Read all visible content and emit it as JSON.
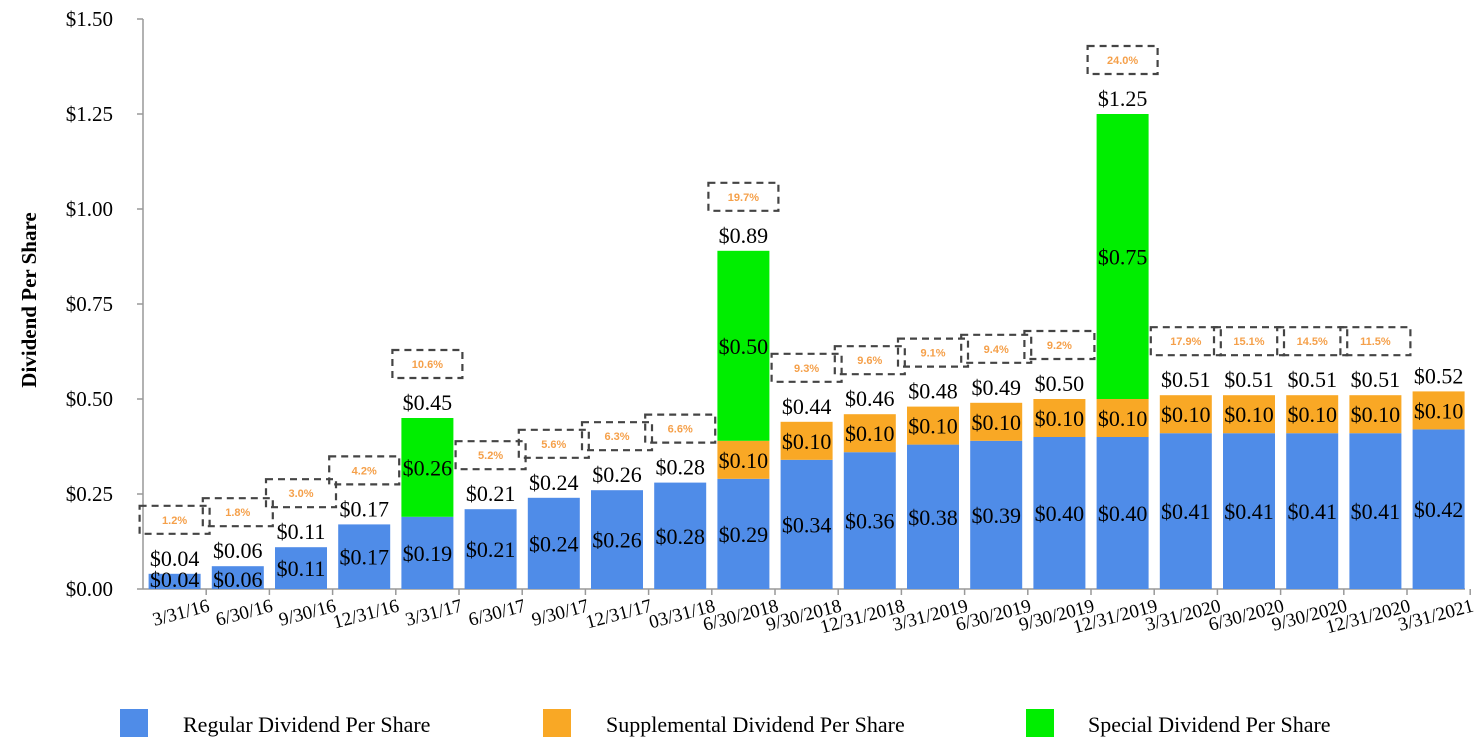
{
  "chart_data": {
    "type": "bar",
    "stacked": true,
    "ylabel": "Dividend Per Share",
    "xlabel": "",
    "ylim": [
      0,
      1.5
    ],
    "yticks": [
      "$0.00",
      "$0.25",
      "$0.50",
      "$0.75",
      "$1.00",
      "$1.25",
      "$1.50"
    ],
    "ytick_values": [
      0,
      0.25,
      0.5,
      0.75,
      1.0,
      1.25,
      1.5
    ],
    "categories": [
      "3/31/16",
      "6/30/16",
      "9/30/16",
      "12/31/16",
      "3/31/17",
      "6/30/17",
      "9/30/17",
      "12/31/17",
      "03/31/18",
      "6/30/2018",
      "9/30/2018",
      "12/31/2018",
      "3/31/2019",
      "6/30/2019",
      "9/30/2019",
      "12/31/2019",
      "3/31/2020",
      "6/30/2020",
      "9/30/2020",
      "12/31/2020",
      "3/31/2021"
    ],
    "series": [
      {
        "name": "Regular Dividend Per Share",
        "color": "#4f8ce8",
        "values": [
          0.04,
          0.06,
          0.11,
          0.17,
          0.19,
          0.21,
          0.24,
          0.26,
          0.28,
          0.29,
          0.34,
          0.36,
          0.38,
          0.39,
          0.4,
          0.4,
          0.41,
          0.41,
          0.41,
          0.41,
          0.42
        ],
        "labels": [
          "$0.04",
          "$0.06",
          "$0.11",
          "$0.17",
          "$0.19",
          "$0.21",
          "$0.24",
          "$0.26",
          "$0.28",
          "$0.29",
          "$0.34",
          "$0.36",
          "$0.38",
          "$0.39",
          "$0.40",
          "$0.40",
          "$0.41",
          "$0.41",
          "$0.41",
          "$0.41",
          "$0.42"
        ]
      },
      {
        "name": "Supplemental Dividend Per Share",
        "color": "#f9a825",
        "values": [
          0,
          0,
          0,
          0,
          0,
          0,
          0,
          0,
          0,
          0.1,
          0.1,
          0.1,
          0.1,
          0.1,
          0.1,
          0.1,
          0.1,
          0.1,
          0.1,
          0.1,
          0.1
        ],
        "labels": [
          "",
          "",
          "",
          "",
          "",
          "",
          "",
          "",
          "",
          "$0.10",
          "$0.10",
          "$0.10",
          "$0.10",
          "$0.10",
          "$0.10",
          "$0.10",
          "$0.10",
          "$0.10",
          "$0.10",
          "$0.10",
          "$0.10"
        ]
      },
      {
        "name": "Special Dividend Per Share",
        "color": "#00ee00",
        "values": [
          0,
          0,
          0,
          0,
          0.26,
          0,
          0,
          0,
          0,
          0.5,
          0,
          0,
          0,
          0,
          0,
          0.75,
          0,
          0,
          0,
          0,
          0
        ],
        "labels": [
          "",
          "",
          "",
          "",
          "$0.26",
          "",
          "",
          "",
          "",
          "$0.50",
          "",
          "",
          "",
          "",
          "",
          "$0.75",
          "",
          "",
          "",
          "",
          ""
        ]
      }
    ],
    "totals": [
      0.04,
      0.06,
      0.11,
      0.17,
      0.45,
      0.21,
      0.24,
      0.26,
      0.28,
      0.89,
      0.44,
      0.46,
      0.48,
      0.49,
      0.5,
      1.25,
      0.51,
      0.51,
      0.51,
      0.51,
      0.52
    ],
    "total_labels": [
      "$0.04",
      "$0.06",
      "$0.11",
      "$0.17",
      "$0.45",
      "$0.21",
      "$0.24",
      "$0.26",
      "$0.28",
      "$0.89",
      "$0.44",
      "$0.46",
      "$0.48",
      "$0.49",
      "$0.50",
      "$1.25",
      "$0.51",
      "$0.51",
      "$0.51",
      "$0.51",
      "$0.52"
    ],
    "yield_labels": [
      "1.2%",
      "1.8%",
      "3.0%",
      "4.2%",
      "10.6%",
      "5.2%",
      "5.6%",
      "6.3%",
      "6.6%",
      "19.7%",
      "9.3%",
      "9.6%",
      "9.1%",
      "9.4%",
      "9.2%",
      "24.0%",
      "17.9%",
      "15.1%",
      "14.5%",
      "11.5%",
      ""
    ],
    "legend": [
      "Regular Dividend Per Share",
      "Supplemental Dividend Per Share",
      "Special Dividend Per Share"
    ],
    "legend_position": "bottom",
    "grid": false,
    "yield_color": "#f5a04a"
  }
}
